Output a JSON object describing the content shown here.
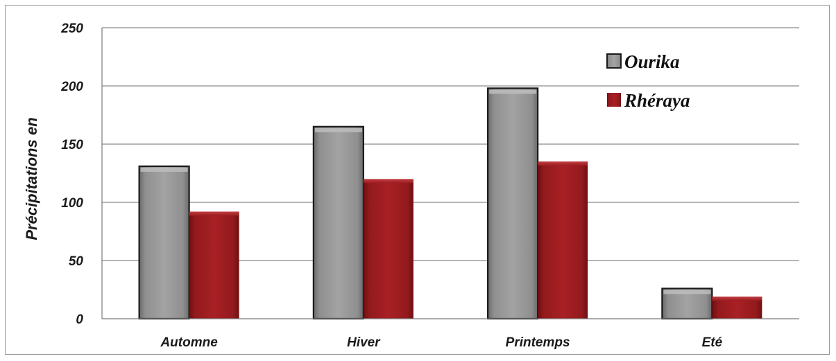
{
  "chart_data": {
    "type": "bar",
    "title": "",
    "xlabel": "",
    "ylabel": "Précipitations en",
    "ylim": [
      0,
      250
    ],
    "yticks": [
      0,
      50,
      100,
      150,
      200,
      250
    ],
    "grid": true,
    "legend_position": "top-right",
    "categories": [
      "Automne",
      "Hiver",
      "Printemps",
      "Eté"
    ],
    "series": [
      {
        "name": "Ourika",
        "color": "#8c8c8c",
        "values": [
          131,
          165,
          198,
          26
        ]
      },
      {
        "name": "Rhéraya",
        "color": "#9b1b1e",
        "values": [
          92,
          120,
          135,
          19
        ]
      }
    ]
  }
}
